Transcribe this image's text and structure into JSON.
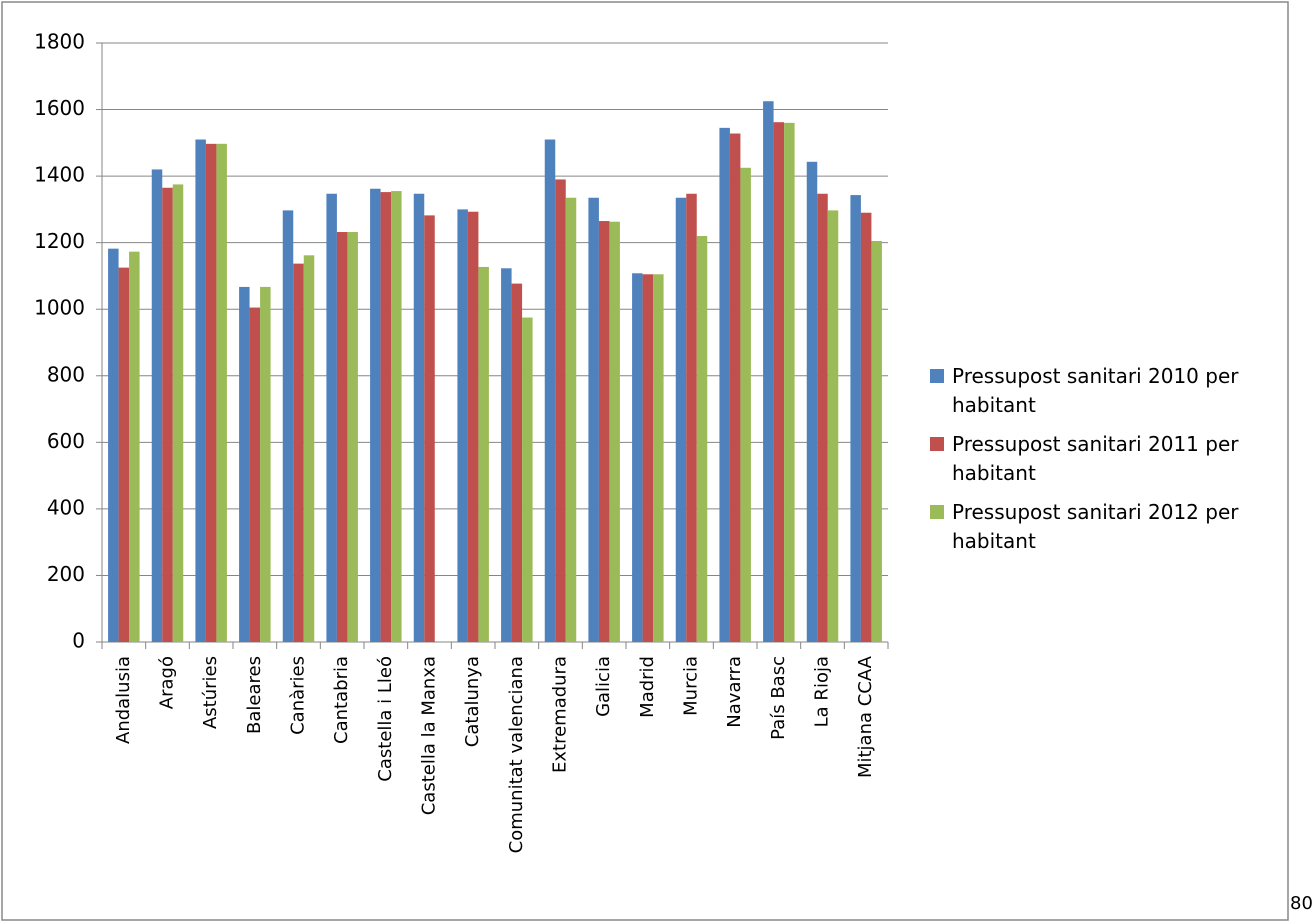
{
  "chart_data": {
    "type": "bar",
    "categories": [
      "Andalusia",
      "Aragó",
      "Astúries",
      "Baleares",
      "Canàries",
      "Cantabria",
      "Castella i Lleó",
      "Castella la Manxa",
      "Catalunya",
      "Comunitat valenciana",
      "Extremadura",
      "Galicia",
      "Madrid",
      "Murcia",
      "Navarra",
      "País Basc",
      "La Rioja",
      "Mitjana CCAA"
    ],
    "series": [
      {
        "name": "Pressupost sanitari  2010 per habitant",
        "color": "#4f81bd",
        "values": [
          1182,
          1420,
          1510,
          1067,
          1297,
          1347,
          1362,
          1347,
          1300,
          1123,
          1510,
          1335,
          1108,
          1335,
          1545,
          1625,
          1443,
          1343
        ]
      },
      {
        "name": "Pressupost sanitari  2011 per habitant",
        "color": "#c0504d",
        "values": [
          1125,
          1365,
          1497,
          1005,
          1137,
          1232,
          1352,
          1282,
          1293,
          1077,
          1390,
          1265,
          1105,
          1347,
          1528,
          1562,
          1347,
          1290
        ]
      },
      {
        "name": "Pressupost sanitari 2012 per habitant",
        "color": "#9bbb59",
        "values": [
          1173,
          1375,
          1497,
          1067,
          1162,
          1232,
          1355,
          null,
          1127,
          975,
          1335,
          1263,
          1105,
          1220,
          1425,
          1560,
          1297,
          1205
        ]
      }
    ],
    "ylim": [
      0,
      1800
    ],
    "yticks": [
      0,
      200,
      400,
      600,
      800,
      1000,
      1200,
      1400,
      1600,
      1800
    ],
    "grid": true,
    "legend": "right",
    "annotation": "80"
  }
}
